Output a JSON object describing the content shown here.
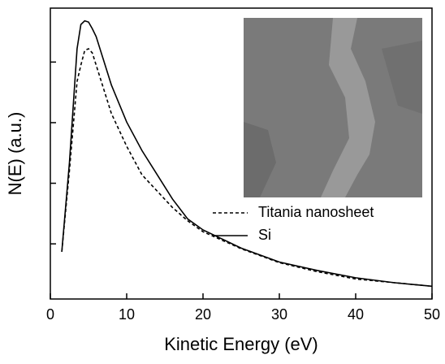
{
  "chart_data": {
    "type": "line",
    "x_label": "Kinetic Energy (eV)",
    "y_label": "N(E) (a.u.)",
    "xlim": [
      0,
      50
    ],
    "xticks": [
      0,
      10,
      20,
      30,
      40,
      50
    ],
    "ylim": [
      0.09,
      4.89
    ],
    "yticks": [
      1,
      2,
      3,
      4
    ],
    "x": [
      1.5,
      2.5,
      3.5,
      4,
      4.5,
      5,
      5.5,
      6,
      7,
      8,
      10,
      12,
      14,
      16,
      18,
      20,
      25,
      30,
      35,
      40,
      45,
      50
    ],
    "series": [
      {
        "name": "Titania nanosheet",
        "color": "#000000",
        "dash": "4,3",
        "values": [
          0.87,
          2.21,
          3.68,
          3.95,
          4.19,
          4.22,
          4.15,
          3.95,
          3.55,
          3.15,
          2.61,
          2.14,
          1.87,
          1.6,
          1.38,
          1.2,
          0.92,
          0.69,
          0.54,
          0.42,
          0.36,
          0.3
        ]
      },
      {
        "name": "Si",
        "color": "#000000",
        "dash": "none",
        "values": [
          0.87,
          2.34,
          4.22,
          4.62,
          4.68,
          4.66,
          4.55,
          4.42,
          4.02,
          3.62,
          3.01,
          2.54,
          2.14,
          1.74,
          1.41,
          1.23,
          0.93,
          0.7,
          0.56,
          0.44,
          0.36,
          0.3
        ]
      }
    ]
  }
}
